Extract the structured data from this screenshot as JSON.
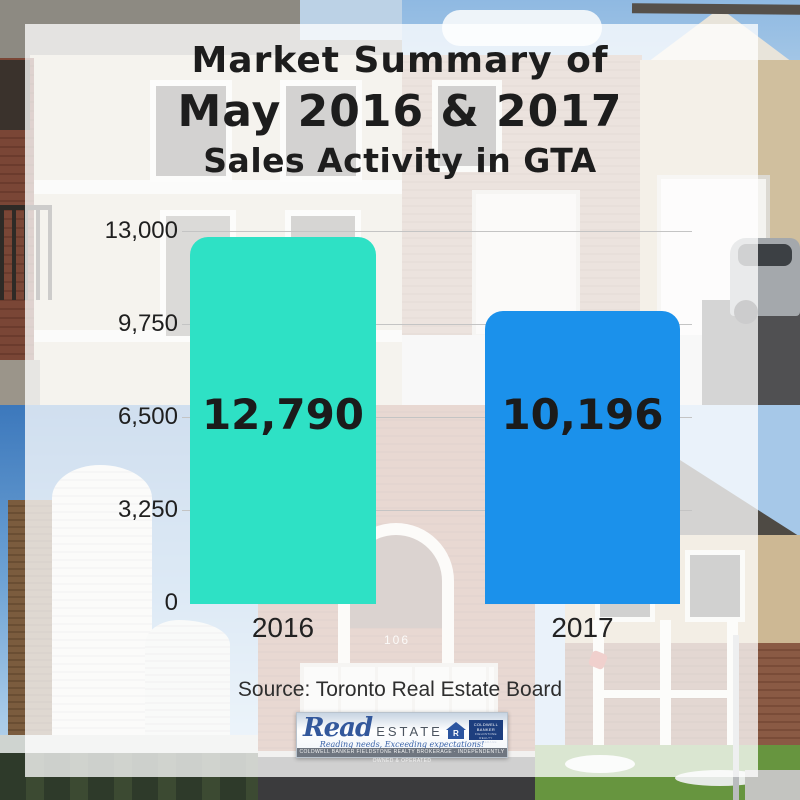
{
  "title": {
    "line1": "Market Summary of",
    "line2": "May 2016 & 2017",
    "line3": "Sales Activity in GTA"
  },
  "chart_data": {
    "type": "bar",
    "title": "Market Summary of May 2016 & 2017",
    "subtitle": "Sales Activity in GTA",
    "categories": [
      "2016",
      "2017"
    ],
    "values": [
      12790,
      10196
    ],
    "value_labels": [
      "12,790",
      "10,196"
    ],
    "series_colors": [
      "#2EE1C5",
      "#1B91EB"
    ],
    "ytick_labels": [
      "13,000",
      "9,750",
      "6,500",
      "3,250",
      "0"
    ],
    "ytick_values": [
      13000,
      9750,
      6500,
      3250,
      0
    ],
    "ylim": [
      0,
      13000
    ],
    "grid": "horizontal",
    "legend": "none",
    "xlabel": "",
    "ylabel": ""
  },
  "source_note": "Source: Toronto Real Estate Board",
  "logo": {
    "brand_script": "Read",
    "brand_rest": "ESTATE",
    "house_letter": "R",
    "badge_line1": "COLDWELL",
    "badge_line2": "BANKER",
    "badge_sub": "FIELDSTONE REALTY BROKERAGE",
    "tagline": "Reading needs, Exceeding expectations!",
    "footer": "COLDWELL BANKER FIELDSTONE REALTY BROKERAGE · INDEPENDENTLY OWNED & OPERATED"
  },
  "background": {
    "house_number": "106",
    "photos": [
      "house-top-left",
      "street-top-right",
      "absolute-towers",
      "brick-facade",
      "house-bottom-right"
    ]
  }
}
